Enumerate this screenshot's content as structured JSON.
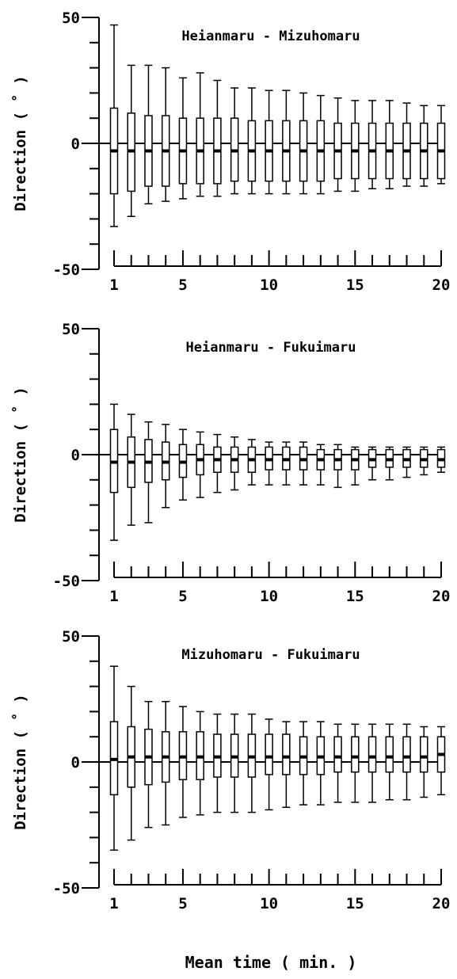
{
  "chart_data": [
    {
      "type": "box",
      "title": "Heianmaru - Mizuhomaru",
      "ylabel": "Direction ( ˚ )",
      "xlabel": "",
      "ylim": [
        -50,
        50
      ],
      "y_ticks": [
        -50,
        0,
        50
      ],
      "x_ticks": [
        1,
        5,
        10,
        15,
        20
      ],
      "x": [
        1,
        2,
        3,
        4,
        5,
        6,
        7,
        8,
        9,
        10,
        11,
        12,
        13,
        14,
        15,
        16,
        17,
        18,
        19,
        20
      ],
      "whisker_high": [
        47,
        31,
        31,
        30,
        26,
        28,
        25,
        22,
        22,
        21,
        21,
        20,
        19,
        18,
        17,
        17,
        17,
        16,
        15,
        15
      ],
      "q3": [
        14,
        12,
        11,
        11,
        10,
        10,
        10,
        10,
        9,
        9,
        9,
        9,
        9,
        8,
        8,
        8,
        8,
        8,
        8,
        8
      ],
      "median": [
        -3,
        -3,
        -3,
        -3,
        -3,
        -3,
        -3,
        -3,
        -3,
        -3,
        -3,
        -3,
        -3,
        -3,
        -3,
        -3,
        -3,
        -3,
        -3,
        -3
      ],
      "q1": [
        -20,
        -19,
        -17,
        -17,
        -16,
        -16,
        -16,
        -15,
        -15,
        -15,
        -15,
        -15,
        -15,
        -14,
        -14,
        -14,
        -14,
        -14,
        -14,
        -14
      ],
      "whisker_low": [
        -33,
        -29,
        -24,
        -23,
        -22,
        -21,
        -21,
        -20,
        -20,
        -20,
        -20,
        -20,
        -20,
        -19,
        -19,
        -18,
        -18,
        -17,
        -17,
        -16
      ]
    },
    {
      "type": "box",
      "title": "Heianmaru - Fukuimaru",
      "ylabel": "Direction ( ˚ )",
      "xlabel": "",
      "ylim": [
        -50,
        50
      ],
      "y_ticks": [
        -50,
        0,
        50
      ],
      "x_ticks": [
        1,
        5,
        10,
        15,
        20
      ],
      "x": [
        1,
        2,
        3,
        4,
        5,
        6,
        7,
        8,
        9,
        10,
        11,
        12,
        13,
        14,
        15,
        16,
        17,
        18,
        19,
        20
      ],
      "whisker_high": [
        20,
        16,
        13,
        12,
        10,
        9,
        8,
        7,
        6,
        5,
        5,
        5,
        4,
        4,
        3,
        3,
        3,
        3,
        3,
        3
      ],
      "q3": [
        10,
        7,
        6,
        5,
        4,
        4,
        3,
        3,
        3,
        3,
        3,
        3,
        2,
        2,
        2,
        2,
        2,
        2,
        2,
        2
      ],
      "median": [
        -3,
        -3,
        -3,
        -3,
        -3,
        -2,
        -2,
        -2,
        -2,
        -2,
        -2,
        -2,
        -2,
        -2,
        -2,
        -2,
        -2,
        -2,
        -2,
        -2
      ],
      "q1": [
        -15,
        -13,
        -11,
        -10,
        -9,
        -8,
        -7,
        -7,
        -7,
        -6,
        -6,
        -6,
        -6,
        -6,
        -6,
        -5,
        -5,
        -5,
        -5,
        -5
      ],
      "whisker_low": [
        -34,
        -28,
        -27,
        -21,
        -18,
        -17,
        -15,
        -14,
        -12,
        -12,
        -12,
        -12,
        -12,
        -13,
        -12,
        -10,
        -10,
        -9,
        -8,
        -7
      ]
    },
    {
      "type": "box",
      "title": "Mizuhomaru - Fukuimaru",
      "ylabel": "Direction ( ˚ )",
      "xlabel": "Mean time ( min. )",
      "ylim": [
        -50,
        50
      ],
      "y_ticks": [
        -50,
        0,
        50
      ],
      "x_ticks": [
        1,
        5,
        10,
        15,
        20
      ],
      "x": [
        1,
        2,
        3,
        4,
        5,
        6,
        7,
        8,
        9,
        10,
        11,
        12,
        13,
        14,
        15,
        16,
        17,
        18,
        19,
        20
      ],
      "whisker_high": [
        38,
        30,
        24,
        24,
        22,
        20,
        19,
        19,
        19,
        17,
        16,
        16,
        16,
        15,
        15,
        15,
        15,
        15,
        14,
        14
      ],
      "q3": [
        16,
        14,
        13,
        12,
        12,
        12,
        11,
        11,
        11,
        11,
        11,
        10,
        10,
        10,
        10,
        10,
        10,
        10,
        10,
        10
      ],
      "median": [
        1,
        2,
        2,
        2,
        2,
        2,
        2,
        2,
        2,
        2,
        2,
        2,
        2,
        2,
        2,
        2,
        2,
        2,
        2,
        3
      ],
      "q1": [
        -13,
        -10,
        -9,
        -8,
        -7,
        -7,
        -6,
        -6,
        -6,
        -5,
        -5,
        -5,
        -5,
        -4,
        -4,
        -4,
        -4,
        -4,
        -4,
        -4
      ],
      "whisker_low": [
        -35,
        -31,
        -26,
        -25,
        -22,
        -21,
        -20,
        -20,
        -20,
        -19,
        -18,
        -17,
        -17,
        -16,
        -16,
        -16,
        -15,
        -15,
        -14,
        -13
      ]
    }
  ]
}
